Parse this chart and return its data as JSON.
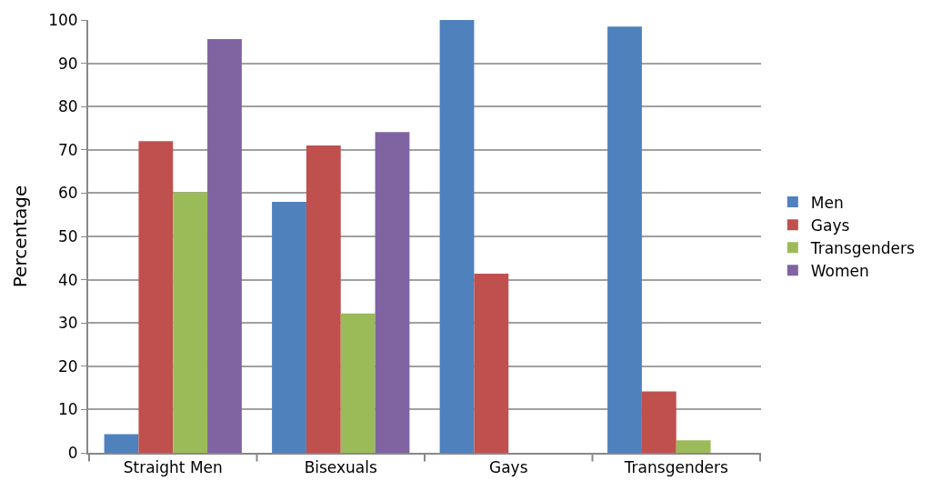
{
  "chart_data": {
    "type": "bar",
    "ylabel": "Percentage",
    "categories": [
      "Straight Men",
      "Bisexuals",
      "Gays",
      "Transgenders"
    ],
    "series": [
      {
        "name": "Men",
        "color": "#4f81bd",
        "values": [
          4.3,
          58.0,
          100,
          98.5
        ]
      },
      {
        "name": "Gays",
        "color": "#c0504d",
        "values": [
          72.0,
          71.0,
          41.4,
          14.2
        ]
      },
      {
        "name": "Transgenders",
        "color": "#9bbb59",
        "values": [
          60.2,
          32.2,
          0,
          2.9
        ]
      },
      {
        "name": "Women",
        "color": "#8064a2",
        "values": [
          95.6,
          74.1,
          0,
          0
        ]
      }
    ],
    "ylim": [
      0,
      100
    ],
    "yticks": [
      0,
      10,
      20,
      30,
      40,
      50,
      60,
      70,
      80,
      90,
      100
    ],
    "grid": "y",
    "legend": "right"
  }
}
